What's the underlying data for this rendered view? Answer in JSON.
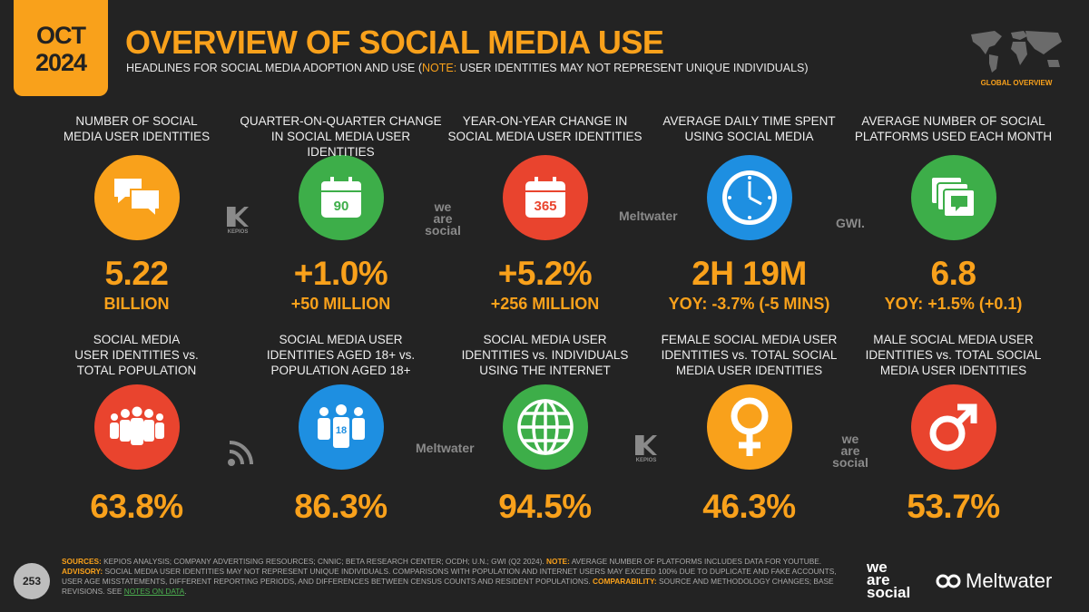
{
  "header": {
    "date_month": "OCT",
    "date_year": "2024",
    "title": "OVERVIEW OF SOCIAL MEDIA USE",
    "subtitle_pre": "HEADLINES FOR SOCIAL MEDIA ADOPTION AND USE (",
    "subtitle_note": "NOTE:",
    "subtitle_post": " USER IDENTITIES MAY NOT REPRESENT UNIQUE INDIVIDUALS)",
    "badge": "GLOBAL OVERVIEW"
  },
  "colors": {
    "accent": "#F9A11B",
    "background": "#232323"
  },
  "cards": [
    {
      "label": "NUMBER OF SOCIAL\nMEDIA USER IDENTITIES",
      "icon": "chat-bubbles-icon",
      "color": "#F9A11B",
      "value": "5.22",
      "sub": "BILLION"
    },
    {
      "label": "QUARTER-ON-QUARTER CHANGE\nIN SOCIAL MEDIA USER IDENTITIES",
      "icon": "calendar-90-icon",
      "icon_text": "90",
      "color": "#3DAE49",
      "value": "+1.0%",
      "sub": "+50 MILLION"
    },
    {
      "label": "YEAR-ON-YEAR CHANGE IN\nSOCIAL MEDIA USER IDENTITIES",
      "icon": "calendar-365-icon",
      "icon_text": "365",
      "color": "#E9442E",
      "value": "+5.2%",
      "sub": "+256 MILLION"
    },
    {
      "label": "AVERAGE DAILY TIME SPENT\nUSING SOCIAL MEDIA",
      "icon": "clock-icon",
      "color": "#1E8FE1",
      "value": "2H 19M",
      "sub": "YOY: -3.7% (-5 MINS)"
    },
    {
      "label": "AVERAGE NUMBER OF SOCIAL\nPLATFORMS USED EACH MONTH",
      "icon": "stacked-windows-icon",
      "color": "#3DAE49",
      "value": "6.8",
      "sub": "YOY: +1.5% (+0.1)"
    },
    {
      "label": "SOCIAL MEDIA\nUSER IDENTITIES vs.\nTOTAL POPULATION",
      "icon": "people-group-icon",
      "color": "#E9442E",
      "value": "63.8%",
      "sub": ""
    },
    {
      "label": "SOCIAL MEDIA USER\nIDENTITIES AGED 18+ vs.\nPOPULATION AGED 18+",
      "icon": "adults-18-icon",
      "icon_text": "18",
      "color": "#1E8FE1",
      "value": "86.3%",
      "sub": ""
    },
    {
      "label": "SOCIAL MEDIA USER\nIDENTITIES vs. INDIVIDUALS\nUSING THE INTERNET",
      "icon": "globe-icon",
      "color": "#3DAE49",
      "value": "94.5%",
      "sub": ""
    },
    {
      "label": "FEMALE SOCIAL MEDIA USER\nIDENTITIES vs. TOTAL SOCIAL\nMEDIA USER IDENTITIES",
      "icon": "female-symbol-icon",
      "color": "#F9A11B",
      "value": "46.3%",
      "sub": ""
    },
    {
      "label": "MALE SOCIAL MEDIA USER\nIDENTITIES vs. TOTAL SOCIAL\nMEDIA USER IDENTITIES",
      "icon": "male-symbol-icon",
      "color": "#E9442E",
      "value": "53.7%",
      "sub": ""
    }
  ],
  "sources": [
    "KEPIOS",
    "we are social",
    "Meltwater",
    "GWI.",
    "",
    "Meltwater",
    "KEPIOS",
    "we are social"
  ],
  "footer": {
    "sources_label": "SOURCES:",
    "sources_text": " KEPIOS ANALYSIS; COMPANY ADVERTISING RESOURCES; CNNIC; BETA RESEARCH CENTER; OCDH; U.N.; GWI (Q2 2024). ",
    "note_label": "NOTE:",
    "note_text": " AVERAGE NUMBER OF PLATFORMS INCLUDES DATA FOR YOUTUBE.",
    "advisory_label": "ADVISORY:",
    "advisory_text": " SOCIAL MEDIA USER IDENTITIES MAY NOT REPRESENT UNIQUE INDIVIDUALS. COMPARISONS WITH POPULATION AND INTERNET USERS MAY EXCEED 100% DUE TO DUPLICATE AND FAKE ACCOUNTS, USER AGE MISSTATEMENTS, DIFFERENT REPORTING PERIODS, AND DIFFERENCES BETWEEN CENSUS COUNTS AND RESIDENT POPULATIONS. ",
    "comparability_label": "COMPARABILITY:",
    "comparability_text": " SOURCE AND METHODOLOGY CHANGES; BASE REVISIONS. SEE ",
    "notes_link": "NOTES ON DATA",
    "end": ".",
    "page_number": "253",
    "logo_was": "we\nare\nsocial",
    "logo_mw": "Meltwater"
  }
}
